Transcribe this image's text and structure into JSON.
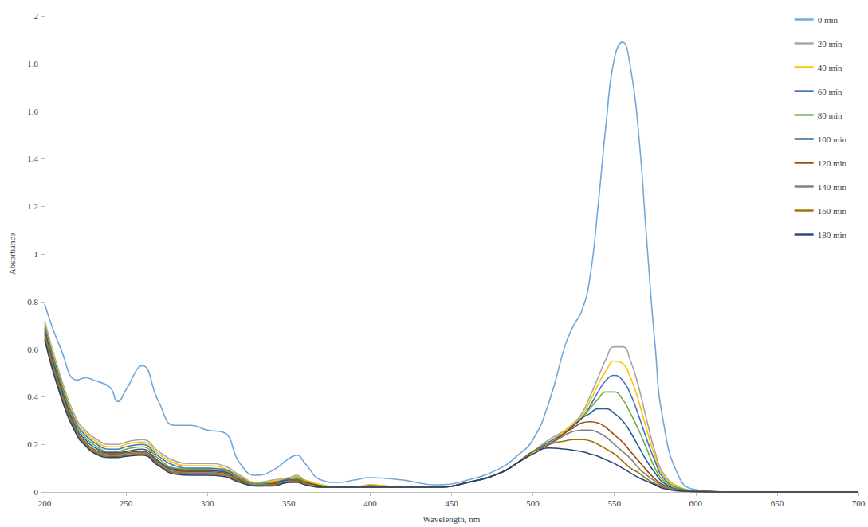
{
  "chart_data": {
    "type": "line",
    "x_label": "Wavelength, nm",
    "y_label": "Absorbance",
    "xlim": [
      200,
      700
    ],
    "xticks": [
      200,
      250,
      300,
      350,
      400,
      450,
      500,
      550,
      600,
      650,
      700
    ],
    "ylim": [
      0,
      2
    ],
    "yticks": [
      0,
      0.2,
      0.4,
      0.6,
      0.8,
      1,
      1.2,
      1.4,
      1.6,
      1.8,
      2
    ],
    "grid": false,
    "legend": "top-right",
    "marker": "none",
    "line_style": "solid",
    "x": [
      200,
      210,
      220,
      225,
      230,
      240,
      245,
      250,
      260,
      270,
      280,
      290,
      300,
      310,
      320,
      330,
      340,
      350,
      355,
      360,
      370,
      380,
      390,
      400,
      420,
      440,
      460,
      480,
      490,
      500,
      510,
      520,
      525,
      530,
      535,
      540,
      545,
      550,
      555,
      560,
      565,
      570,
      575,
      580,
      590,
      600,
      620,
      650,
      700
    ],
    "series": [
      {
        "name": "0 min",
        "color": "#6FA8DC",
        "values": [
          0.79,
          0.6,
          0.47,
          0.48,
          0.47,
          0.44,
          0.38,
          0.43,
          0.53,
          0.38,
          0.28,
          0.28,
          0.26,
          0.25,
          0.12,
          0.07,
          0.09,
          0.14,
          0.155,
          0.12,
          0.05,
          0.04,
          0.05,
          0.06,
          0.05,
          0.03,
          0.05,
          0.1,
          0.15,
          0.22,
          0.38,
          0.62,
          0.7,
          0.76,
          0.9,
          1.2,
          1.55,
          1.82,
          1.89,
          1.78,
          1.5,
          1.05,
          0.62,
          0.3,
          0.06,
          0.01,
          0,
          0,
          0
        ]
      },
      {
        "name": "20 min",
        "color": "#A5A5A5",
        "values": [
          0.72,
          0.48,
          0.3,
          0.26,
          0.23,
          0.2,
          0.2,
          0.21,
          0.22,
          0.17,
          0.13,
          0.12,
          0.12,
          0.11,
          0.07,
          0.04,
          0.05,
          0.06,
          0.07,
          0.05,
          0.03,
          0.02,
          0.02,
          0.03,
          0.02,
          0.02,
          0.04,
          0.08,
          0.12,
          0.17,
          0.22,
          0.26,
          0.29,
          0.33,
          0.4,
          0.48,
          0.56,
          0.61,
          0.61,
          0.55,
          0.44,
          0.3,
          0.17,
          0.08,
          0.02,
          0.005,
          0,
          0,
          0
        ]
      },
      {
        "name": "40 min",
        "color": "#FFC000",
        "values": [
          0.71,
          0.47,
          0.29,
          0.25,
          0.22,
          0.19,
          0.19,
          0.2,
          0.21,
          0.16,
          0.12,
          0.11,
          0.11,
          0.1,
          0.065,
          0.04,
          0.045,
          0.06,
          0.065,
          0.05,
          0.03,
          0.02,
          0.02,
          0.03,
          0.02,
          0.02,
          0.04,
          0.08,
          0.12,
          0.17,
          0.21,
          0.26,
          0.29,
          0.32,
          0.38,
          0.45,
          0.51,
          0.55,
          0.54,
          0.48,
          0.38,
          0.26,
          0.15,
          0.07,
          0.02,
          0.005,
          0,
          0,
          0
        ]
      },
      {
        "name": "60 min",
        "color": "#4472C4",
        "values": [
          0.7,
          0.46,
          0.28,
          0.24,
          0.21,
          0.18,
          0.18,
          0.19,
          0.2,
          0.15,
          0.11,
          0.1,
          0.1,
          0.095,
          0.06,
          0.035,
          0.04,
          0.055,
          0.06,
          0.045,
          0.025,
          0.02,
          0.02,
          0.025,
          0.02,
          0.02,
          0.04,
          0.08,
          0.12,
          0.17,
          0.21,
          0.25,
          0.28,
          0.31,
          0.36,
          0.42,
          0.47,
          0.49,
          0.47,
          0.41,
          0.32,
          0.22,
          0.13,
          0.06,
          0.015,
          0.005,
          0,
          0,
          0
        ]
      },
      {
        "name": "80 min",
        "color": "#70AD47",
        "values": [
          0.69,
          0.45,
          0.27,
          0.23,
          0.2,
          0.17,
          0.17,
          0.18,
          0.19,
          0.14,
          0.1,
          0.095,
          0.095,
          0.09,
          0.055,
          0.035,
          0.04,
          0.05,
          0.055,
          0.045,
          0.025,
          0.02,
          0.02,
          0.025,
          0.02,
          0.02,
          0.04,
          0.08,
          0.12,
          0.17,
          0.2,
          0.25,
          0.28,
          0.31,
          0.35,
          0.39,
          0.42,
          0.42,
          0.39,
          0.33,
          0.26,
          0.18,
          0.1,
          0.05,
          0.015,
          0.005,
          0,
          0,
          0
        ]
      },
      {
        "name": "100 min",
        "color": "#255E91",
        "values": [
          0.68,
          0.44,
          0.26,
          0.22,
          0.19,
          0.165,
          0.165,
          0.17,
          0.18,
          0.13,
          0.095,
          0.09,
          0.09,
          0.085,
          0.05,
          0.03,
          0.035,
          0.05,
          0.05,
          0.04,
          0.025,
          0.02,
          0.02,
          0.025,
          0.02,
          0.02,
          0.04,
          0.08,
          0.12,
          0.17,
          0.2,
          0.25,
          0.28,
          0.31,
          0.33,
          0.35,
          0.35,
          0.33,
          0.3,
          0.25,
          0.19,
          0.13,
          0.08,
          0.04,
          0.01,
          0.005,
          0,
          0,
          0
        ]
      },
      {
        "name": "120 min",
        "color": "#9E480E",
        "values": [
          0.67,
          0.43,
          0.25,
          0.21,
          0.18,
          0.16,
          0.16,
          0.165,
          0.17,
          0.125,
          0.09,
          0.085,
          0.085,
          0.08,
          0.05,
          0.03,
          0.035,
          0.045,
          0.05,
          0.04,
          0.025,
          0.02,
          0.02,
          0.025,
          0.02,
          0.02,
          0.04,
          0.08,
          0.12,
          0.17,
          0.2,
          0.25,
          0.27,
          0.29,
          0.295,
          0.29,
          0.27,
          0.24,
          0.21,
          0.17,
          0.13,
          0.09,
          0.055,
          0.03,
          0.008,
          0.003,
          0,
          0,
          0
        ]
      },
      {
        "name": "140 min",
        "color": "#7F7F7F",
        "values": [
          0.66,
          0.42,
          0.245,
          0.205,
          0.175,
          0.155,
          0.155,
          0.16,
          0.165,
          0.12,
          0.085,
          0.08,
          0.08,
          0.075,
          0.045,
          0.03,
          0.03,
          0.045,
          0.045,
          0.035,
          0.02,
          0.02,
          0.02,
          0.02,
          0.02,
          0.02,
          0.04,
          0.08,
          0.12,
          0.17,
          0.2,
          0.24,
          0.255,
          0.26,
          0.26,
          0.25,
          0.23,
          0.2,
          0.17,
          0.14,
          0.1,
          0.07,
          0.045,
          0.025,
          0.007,
          0.002,
          0,
          0,
          0
        ]
      },
      {
        "name": "160 min",
        "color": "#997300",
        "values": [
          0.65,
          0.41,
          0.24,
          0.2,
          0.17,
          0.15,
          0.15,
          0.155,
          0.16,
          0.115,
          0.08,
          0.075,
          0.075,
          0.07,
          0.045,
          0.025,
          0.03,
          0.04,
          0.045,
          0.035,
          0.02,
          0.02,
          0.02,
          0.02,
          0.02,
          0.02,
          0.04,
          0.08,
          0.12,
          0.17,
          0.2,
          0.215,
          0.22,
          0.22,
          0.215,
          0.2,
          0.18,
          0.16,
          0.13,
          0.1,
          0.08,
          0.055,
          0.035,
          0.02,
          0.005,
          0.002,
          0,
          0,
          0
        ]
      },
      {
        "name": "180 min",
        "color": "#264478",
        "values": [
          0.64,
          0.4,
          0.235,
          0.195,
          0.165,
          0.145,
          0.145,
          0.15,
          0.155,
          0.11,
          0.075,
          0.07,
          0.07,
          0.065,
          0.04,
          0.025,
          0.025,
          0.04,
          0.04,
          0.03,
          0.02,
          0.02,
          0.02,
          0.02,
          0.02,
          0.02,
          0.04,
          0.08,
          0.12,
          0.16,
          0.185,
          0.18,
          0.175,
          0.17,
          0.16,
          0.15,
          0.135,
          0.12,
          0.1,
          0.08,
          0.06,
          0.045,
          0.03,
          0.015,
          0.004,
          0.001,
          0,
          0,
          0
        ]
      }
    ]
  }
}
